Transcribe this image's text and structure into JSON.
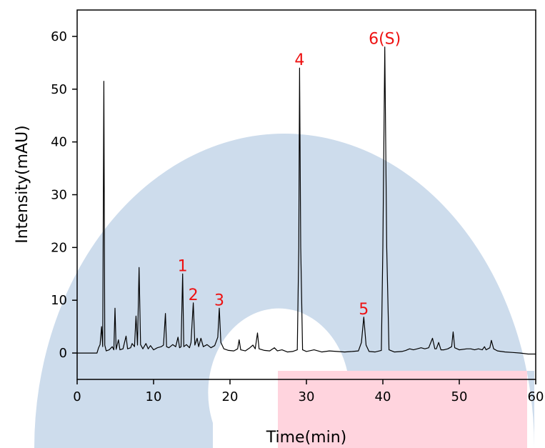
{
  "chart_data": {
    "type": "line",
    "title": "",
    "xlabel": "Time(min)",
    "ylabel": "Intensity(mAU)",
    "xlim": [
      0,
      60
    ],
    "ylim": [
      -5,
      65
    ],
    "x_ticks": [
      0,
      10,
      20,
      30,
      40,
      50,
      60
    ],
    "y_ticks": [
      0,
      10,
      20,
      30,
      40,
      50,
      60
    ],
    "grid": false,
    "trace_color": "#000000",
    "label_color": "#ee1111",
    "series": [
      {
        "values": [
          [
            0.0,
            0.0
          ],
          [
            2.6,
            0.0
          ],
          [
            2.8,
            1.0
          ],
          [
            3.0,
            1.6
          ],
          [
            3.2,
            5.0
          ],
          [
            3.35,
            1.2
          ],
          [
            3.5,
            51.5
          ],
          [
            3.62,
            1.5
          ],
          [
            3.8,
            0.4
          ],
          [
            4.2,
            0.6
          ],
          [
            4.6,
            1.2
          ],
          [
            4.8,
            0.6
          ],
          [
            4.95,
            8.5
          ],
          [
            5.1,
            0.7
          ],
          [
            5.4,
            2.5
          ],
          [
            5.6,
            0.6
          ],
          [
            6.0,
            0.8
          ],
          [
            6.4,
            3.2
          ],
          [
            6.6,
            0.8
          ],
          [
            7.0,
            1.0
          ],
          [
            7.2,
            1.8
          ],
          [
            7.5,
            1.2
          ],
          [
            7.7,
            7.0
          ],
          [
            7.9,
            1.5
          ],
          [
            8.1,
            16.2
          ],
          [
            8.3,
            1.6
          ],
          [
            8.6,
            0.8
          ],
          [
            9.0,
            1.8
          ],
          [
            9.3,
            0.8
          ],
          [
            9.6,
            1.4
          ],
          [
            10.0,
            0.6
          ],
          [
            10.5,
            1.0
          ],
          [
            11.0,
            1.2
          ],
          [
            11.3,
            1.5
          ],
          [
            11.55,
            7.5
          ],
          [
            11.7,
            1.2
          ],
          [
            12.0,
            1.0
          ],
          [
            12.5,
            1.6
          ],
          [
            12.9,
            1.2
          ],
          [
            13.2,
            3.0
          ],
          [
            13.4,
            1.0
          ],
          [
            13.6,
            1.2
          ],
          [
            13.8,
            15.0
          ],
          [
            13.95,
            1.2
          ],
          [
            14.3,
            1.6
          ],
          [
            14.7,
            1.0
          ],
          [
            14.9,
            2.0
          ],
          [
            15.2,
            9.5
          ],
          [
            15.4,
            1.5
          ],
          [
            15.7,
            2.8
          ],
          [
            15.9,
            1.2
          ],
          [
            16.2,
            2.8
          ],
          [
            16.5,
            1.2
          ],
          [
            17.0,
            1.6
          ],
          [
            17.5,
            1.0
          ],
          [
            18.0,
            1.4
          ],
          [
            18.4,
            3.0
          ],
          [
            18.6,
            8.5
          ],
          [
            18.8,
            2.0
          ],
          [
            19.2,
            0.8
          ],
          [
            19.8,
            0.5
          ],
          [
            20.5,
            0.4
          ],
          [
            21.0,
            0.8
          ],
          [
            21.2,
            2.5
          ],
          [
            21.4,
            0.6
          ],
          [
            22.0,
            0.4
          ],
          [
            22.6,
            1.0
          ],
          [
            23.0,
            1.5
          ],
          [
            23.3,
            0.8
          ],
          [
            23.6,
            3.8
          ],
          [
            23.8,
            0.8
          ],
          [
            24.5,
            0.5
          ],
          [
            25.2,
            0.4
          ],
          [
            25.8,
            1.0
          ],
          [
            26.2,
            0.4
          ],
          [
            26.8,
            0.6
          ],
          [
            27.5,
            0.2
          ],
          [
            28.2,
            0.3
          ],
          [
            28.8,
            0.6
          ],
          [
            29.0,
            20.0
          ],
          [
            29.1,
            54.0
          ],
          [
            29.25,
            20.0
          ],
          [
            29.5,
            0.6
          ],
          [
            30.0,
            0.3
          ],
          [
            31.0,
            0.6
          ],
          [
            32.0,
            0.2
          ],
          [
            33.0,
            0.4
          ],
          [
            34.0,
            0.3
          ],
          [
            35.0,
            0.2
          ],
          [
            36.0,
            0.3
          ],
          [
            36.8,
            0.4
          ],
          [
            37.2,
            2.0
          ],
          [
            37.5,
            6.8
          ],
          [
            37.8,
            1.5
          ],
          [
            38.2,
            0.3
          ],
          [
            39.0,
            0.2
          ],
          [
            39.8,
            0.5
          ],
          [
            40.0,
            20.0
          ],
          [
            40.25,
            58.0
          ],
          [
            40.5,
            20.0
          ],
          [
            40.8,
            0.6
          ],
          [
            41.5,
            0.2
          ],
          [
            42.5,
            0.3
          ],
          [
            43.0,
            0.5
          ],
          [
            43.5,
            0.8
          ],
          [
            44.0,
            0.6
          ],
          [
            44.5,
            0.8
          ],
          [
            45.0,
            1.0
          ],
          [
            45.5,
            0.8
          ],
          [
            46.0,
            1.0
          ],
          [
            46.5,
            2.8
          ],
          [
            46.8,
            0.8
          ],
          [
            47.0,
            0.8
          ],
          [
            47.3,
            2.0
          ],
          [
            47.6,
            0.6
          ],
          [
            48.0,
            0.6
          ],
          [
            48.5,
            0.8
          ],
          [
            49.0,
            1.2
          ],
          [
            49.2,
            4.0
          ],
          [
            49.4,
            1.0
          ],
          [
            50.0,
            0.6
          ],
          [
            51.0,
            0.8
          ],
          [
            51.5,
            0.8
          ],
          [
            52.0,
            0.6
          ],
          [
            52.5,
            0.8
          ],
          [
            53.0,
            0.6
          ],
          [
            53.3,
            1.2
          ],
          [
            53.5,
            0.6
          ],
          [
            54.0,
            1.0
          ],
          [
            54.2,
            2.4
          ],
          [
            54.5,
            0.8
          ],
          [
            55.0,
            0.4
          ],
          [
            56.0,
            0.2
          ],
          [
            57.0,
            0.1
          ],
          [
            58.0,
            0.0
          ],
          [
            59.0,
            -0.2
          ],
          [
            60.0,
            -0.2
          ]
        ]
      }
    ],
    "annotations": [
      {
        "text": "1",
        "x": 13.8,
        "y": 15.0
      },
      {
        "text": "2",
        "x": 15.2,
        "y": 9.5
      },
      {
        "text": "3",
        "x": 18.6,
        "y": 8.5
      },
      {
        "text": "4",
        "x": 29.1,
        "y": 54.0
      },
      {
        "text": "5",
        "x": 37.5,
        "y": 6.8
      },
      {
        "text": "6(S)",
        "x": 40.25,
        "y": 58.0
      }
    ]
  }
}
